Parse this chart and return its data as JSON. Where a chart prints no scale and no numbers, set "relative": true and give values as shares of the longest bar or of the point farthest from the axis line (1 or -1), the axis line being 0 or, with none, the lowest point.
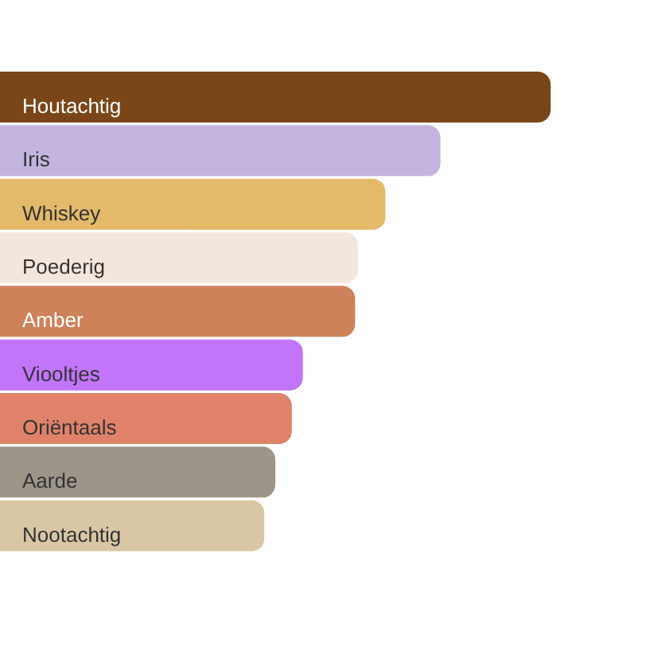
{
  "chart_data": {
    "type": "bar",
    "orientation": "horizontal",
    "relative": true,
    "categories": [
      "Houtachtig",
      "Iris",
      "Whiskey",
      "Poederig",
      "Amber",
      "Viooltjes",
      "Oriëntaals",
      "Aarde",
      "Nootachtig"
    ],
    "values": [
      1,
      0.8,
      0.7,
      0.65,
      0.645,
      0.55,
      0.53,
      0.5,
      0.48
    ],
    "colors": [
      "#7a4619",
      "#c3b5e0",
      "#e3b96a",
      "#f3e6dc",
      "#cd825a",
      "#c275fb",
      "#e0826a",
      "#9e958a",
      "#d9c6a5"
    ],
    "grid": false,
    "legend": false
  }
}
